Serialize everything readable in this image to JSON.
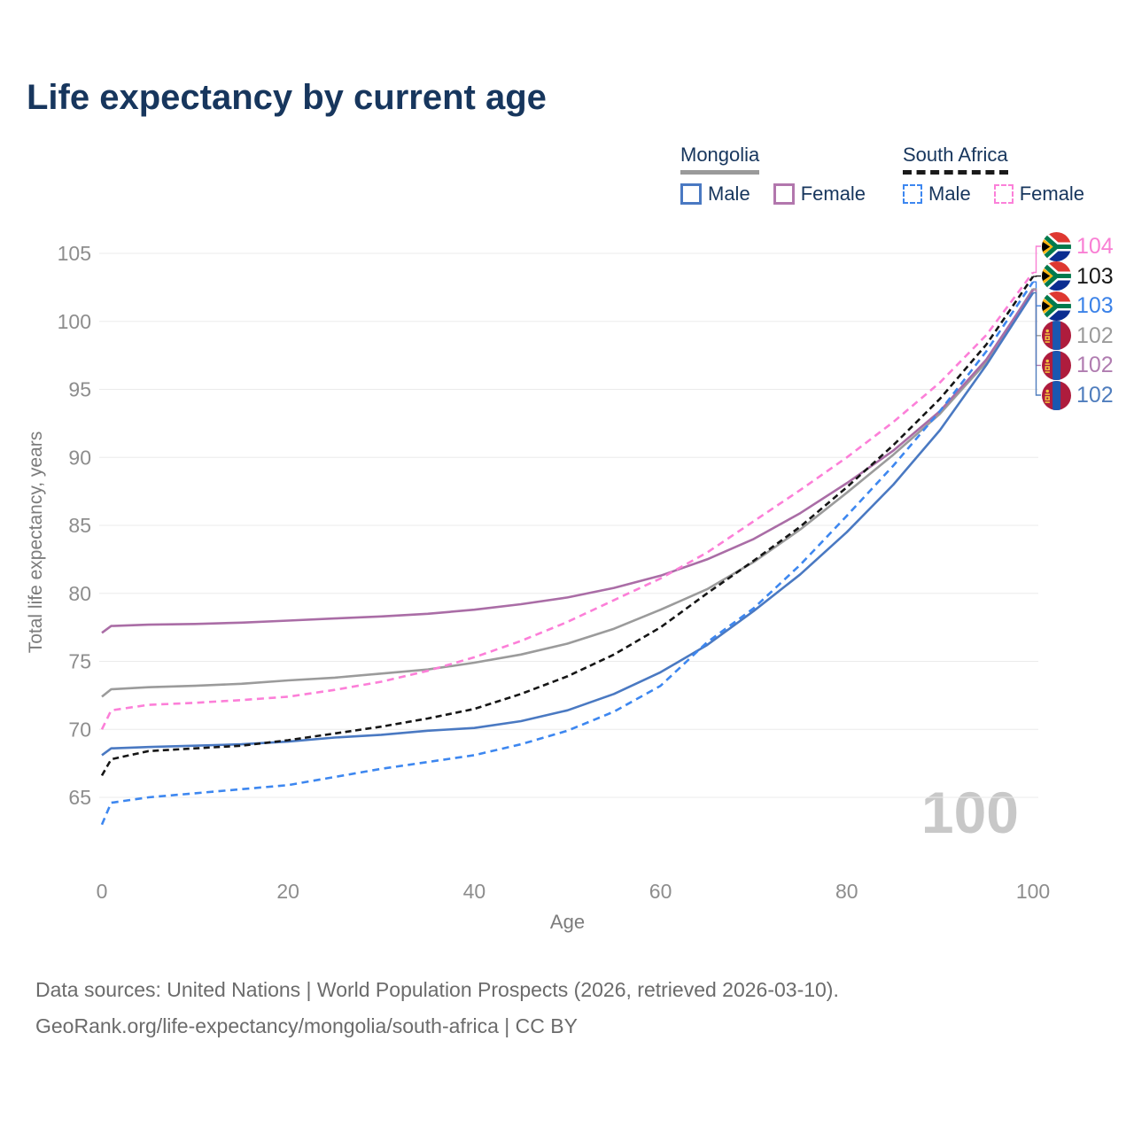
{
  "title": "Life expectancy by current age",
  "watermark_age": "100",
  "axes": {
    "x_label": "Age",
    "y_label": "Total life expectancy, years",
    "x_ticks": [
      0,
      20,
      40,
      60,
      80,
      100
    ],
    "y_ticks": [
      65,
      70,
      75,
      80,
      85,
      90,
      95,
      100,
      105
    ]
  },
  "legend": {
    "groups": [
      {
        "country": "Mongolia",
        "line_style": "solid",
        "swatch_color": "#9a9a9a",
        "items": [
          {
            "label": "Male",
            "color": "#4a79c2",
            "dashed": false
          },
          {
            "label": "Female",
            "color": "#b277ad",
            "dashed": false
          }
        ]
      },
      {
        "country": "South Africa",
        "line_style": "dashed",
        "swatch_color": "#1a1a1a",
        "items": [
          {
            "label": "Male",
            "color": "#3d87f0",
            "dashed": true
          },
          {
            "label": "Female",
            "color": "#fb80d9",
            "dashed": true
          }
        ]
      }
    ]
  },
  "chart_data": {
    "type": "line",
    "title": "Life expectancy by current age",
    "xlabel": "Age",
    "ylabel": "Total life expectancy, years",
    "xlim": [
      0,
      100
    ],
    "ylim": [
      63,
      105.5
    ],
    "grid": "horizontal-only",
    "legend_position": "top-right",
    "x": [
      0,
      1,
      5,
      10,
      15,
      20,
      25,
      30,
      35,
      40,
      45,
      50,
      55,
      60,
      65,
      70,
      75,
      80,
      85,
      90,
      95,
      100
    ],
    "series": [
      {
        "key": "mng_both",
        "name": "Mongolia",
        "country": "Mongolia",
        "sex": "Both",
        "color": "#9b9b9b",
        "dashed": false,
        "values": [
          72.4,
          72.95,
          73.1,
          73.2,
          73.35,
          73.6,
          73.8,
          74.1,
          74.4,
          74.9,
          75.5,
          76.3,
          77.4,
          78.8,
          80.3,
          82.3,
          84.7,
          87.4,
          90.2,
          93.2,
          97.0,
          102.4
        ]
      },
      {
        "key": "mng_female",
        "name": "Mongolia Female",
        "country": "Mongolia",
        "sex": "Female",
        "color": "#aa6da6",
        "dashed": false,
        "values": [
          77.1,
          77.6,
          77.7,
          77.75,
          77.85,
          78.0,
          78.15,
          78.3,
          78.5,
          78.8,
          79.2,
          79.7,
          80.4,
          81.3,
          82.5,
          84.0,
          85.9,
          88.1,
          90.5,
          93.4,
          97.2,
          102.3
        ]
      },
      {
        "key": "mng_male",
        "name": "Mongolia Male",
        "country": "Mongolia",
        "sex": "Male",
        "color": "#4a79c2",
        "dashed": false,
        "values": [
          68.1,
          68.6,
          68.7,
          68.8,
          68.9,
          69.1,
          69.4,
          69.6,
          69.9,
          70.1,
          70.6,
          71.4,
          72.6,
          74.2,
          76.2,
          78.7,
          81.4,
          84.5,
          88.0,
          92.0,
          96.8,
          102.1
        ]
      },
      {
        "key": "sa_both",
        "name": "South Africa",
        "country": "South Africa",
        "sex": "Both",
        "color": "#161616",
        "dashed": true,
        "values": [
          66.6,
          67.8,
          68.4,
          68.6,
          68.8,
          69.2,
          69.7,
          70.2,
          70.8,
          71.5,
          72.6,
          73.9,
          75.5,
          77.5,
          80.0,
          82.4,
          84.9,
          87.8,
          90.9,
          94.3,
          98.3,
          103.3
        ]
      },
      {
        "key": "sa_female",
        "name": "South Africa Female",
        "country": "South Africa",
        "sex": "Female",
        "color": "#fc7fd8",
        "dashed": true,
        "values": [
          70.0,
          71.4,
          71.8,
          71.95,
          72.15,
          72.4,
          72.9,
          73.5,
          74.3,
          75.3,
          76.5,
          77.9,
          79.5,
          81.1,
          83.0,
          85.3,
          87.6,
          90.0,
          92.6,
          95.5,
          99.0,
          103.6
        ]
      },
      {
        "key": "sa_male",
        "name": "South Africa Male",
        "country": "South Africa",
        "sex": "Male",
        "color": "#3d87f0",
        "dashed": true,
        "values": [
          63.0,
          64.6,
          65.0,
          65.3,
          65.6,
          65.9,
          66.5,
          67.1,
          67.6,
          68.1,
          68.9,
          69.9,
          71.3,
          73.2,
          76.4,
          78.9,
          82.1,
          85.7,
          89.4,
          93.4,
          97.8,
          102.9
        ]
      }
    ]
  },
  "end_labels": [
    {
      "value": "104",
      "color": "#f97fd4",
      "flag": "south-africa",
      "series": "sa_female"
    },
    {
      "value": "103",
      "color": "#1a1a1a",
      "flag": "south-africa",
      "series": "sa_both"
    },
    {
      "value": "103",
      "color": "#3b82e8",
      "flag": "south-africa",
      "series": "sa_male"
    },
    {
      "value": "102",
      "color": "#9a9a9a",
      "flag": "mongolia",
      "series": "mng_both"
    },
    {
      "value": "102",
      "color": "#b07cb0",
      "flag": "mongolia",
      "series": "mng_female"
    },
    {
      "value": "102",
      "color": "#4f7dbd",
      "flag": "mongolia",
      "series": "mng_male"
    }
  ],
  "footer": {
    "line1": "Data sources: United Nations | World Population Prospects (2026, retrieved 2026-03-10).",
    "line2": "GeoRank.org/life-expectancy/mongolia/south-africa | CC BY"
  },
  "colors": {
    "title_text": "#17365d",
    "axis_text": "#8d8d8d",
    "axis_title_text": "#7c7c7c",
    "gridline": "#ebebeb",
    "watermark": "#c8c8c8",
    "footer_text": "#6b6b6b"
  }
}
